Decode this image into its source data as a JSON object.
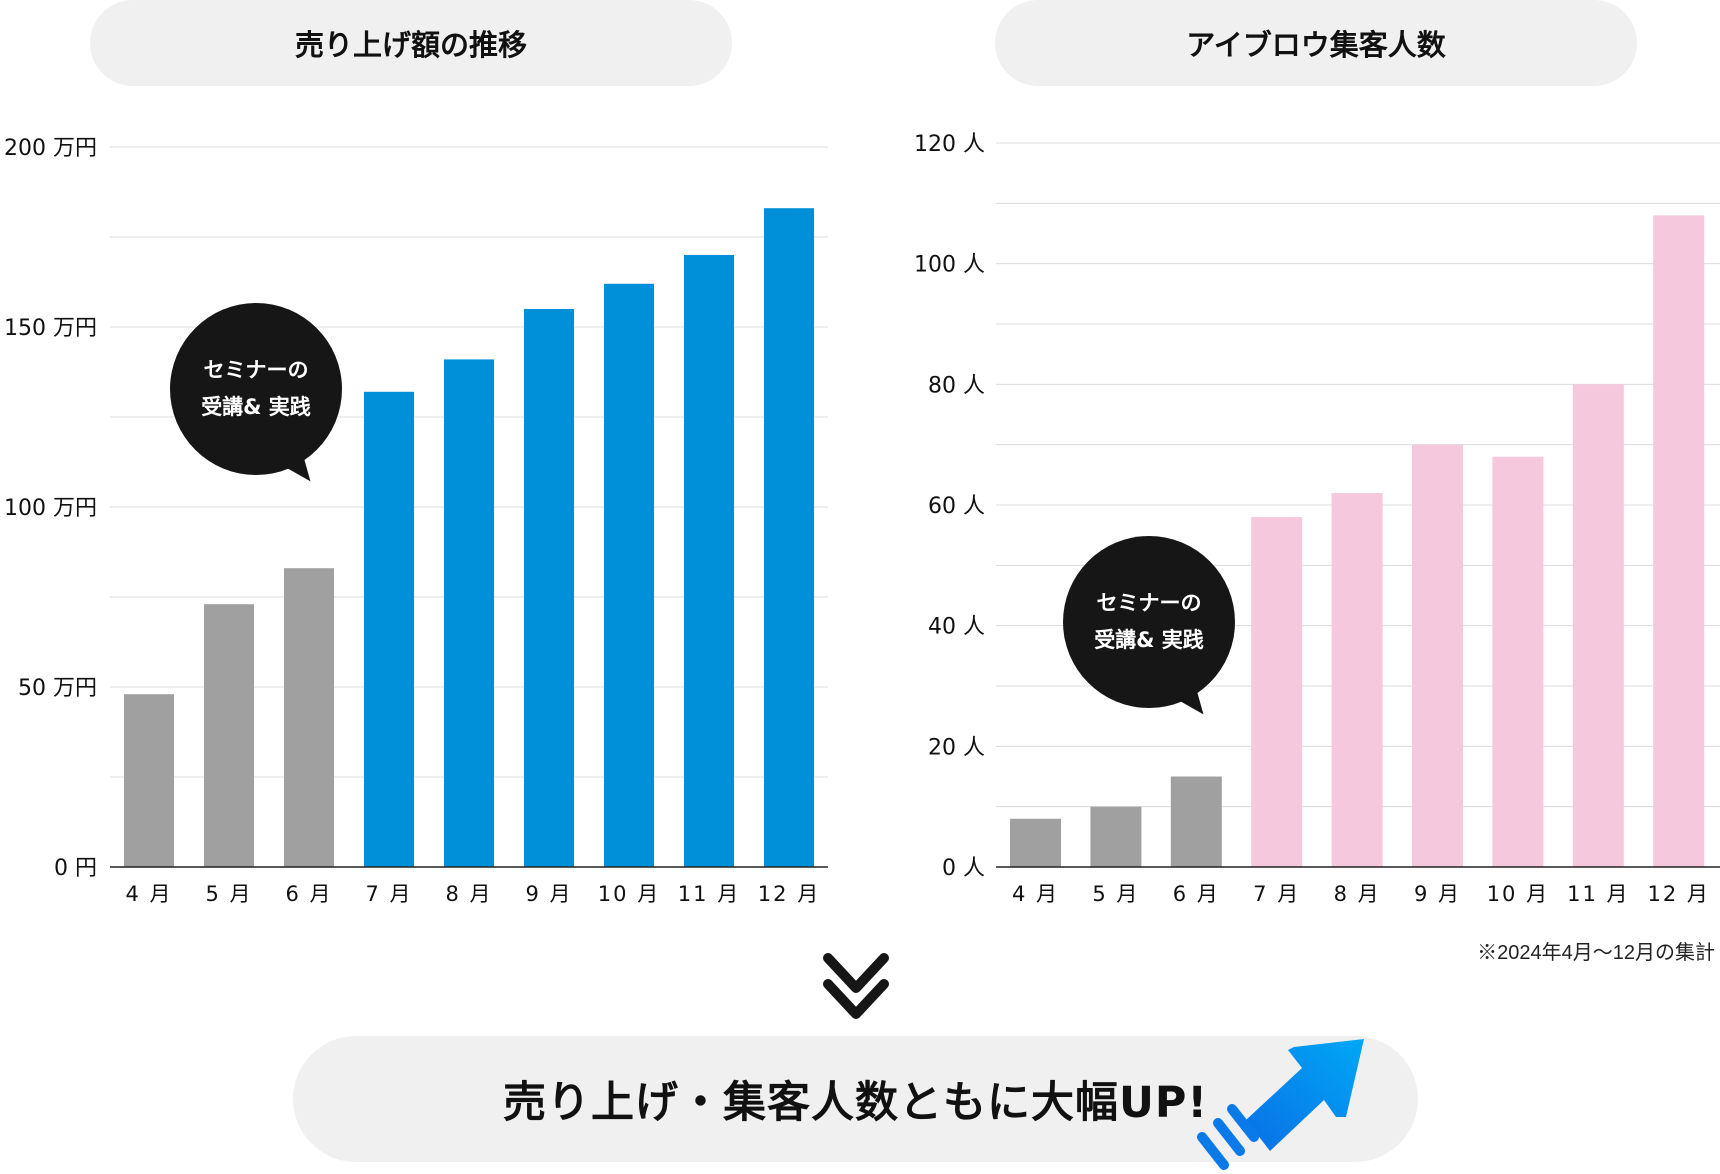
{
  "chart_data": [
    {
      "type": "bar",
      "title": "売り上げ額の推移",
      "categories": [
        "4月",
        "5月",
        "6月",
        "7月",
        "8月",
        "9月",
        "10月",
        "11月",
        "12月"
      ],
      "category_labels": [
        "4 月",
        "5 月",
        "6 月",
        "7 月",
        "8 月",
        "9 月",
        "10 月",
        "11 月",
        "12 月"
      ],
      "values": [
        48,
        73,
        83,
        132,
        141,
        155,
        162,
        170,
        183
      ],
      "unit": "万円",
      "ylim": [
        0,
        200
      ],
      "yticks": [
        0,
        50,
        100,
        150,
        200
      ],
      "ytick_labels": [
        "0 円",
        "50 万円",
        "100 万円",
        "150 万円",
        "200 万円"
      ],
      "minor_gridlines": [
        25,
        75,
        125,
        175
      ],
      "grid": true,
      "colors": {
        "before": "#a0a0a0",
        "after": "#0090da"
      },
      "highlight_from_index": 3,
      "annotation": [
        "セミナーの",
        "受講& 実践"
      ]
    },
    {
      "type": "bar",
      "title": "アイブロウ集客人数",
      "categories": [
        "4月",
        "5月",
        "6月",
        "7月",
        "8月",
        "9月",
        "10月",
        "11月",
        "12月"
      ],
      "category_labels": [
        "4 月",
        "5 月",
        "6 月",
        "7 月",
        "8 月",
        "9 月",
        "10 月",
        "11 月",
        "12 月"
      ],
      "values": [
        8,
        10,
        15,
        58,
        62,
        70,
        68,
        80,
        108
      ],
      "unit": "人",
      "ylim": [
        0,
        120
      ],
      "yticks": [
        0,
        20,
        40,
        60,
        80,
        100,
        120
      ],
      "ytick_labels": [
        "0 人",
        "20 人",
        "40 人",
        "60 人",
        "80 人",
        "100 人",
        "120 人"
      ],
      "minor_gridlines": [
        10,
        30,
        50,
        70,
        90,
        110
      ],
      "grid": true,
      "colors": {
        "before": "#a0a0a0",
        "after": "#f5c8dd"
      },
      "highlight_from_index": 3,
      "annotation": [
        "セミナーの",
        "受講& 実践"
      ]
    }
  ],
  "note": "※2024年4月〜12月の集計",
  "conclusion": "売り上げ・集客人数ともに大幅UP!",
  "icons": {
    "down": "double-chevron-down-icon",
    "up": "arrow-up-right-icon"
  },
  "arrow_gradient": [
    "#0a6fe6",
    "#00a8f5"
  ]
}
